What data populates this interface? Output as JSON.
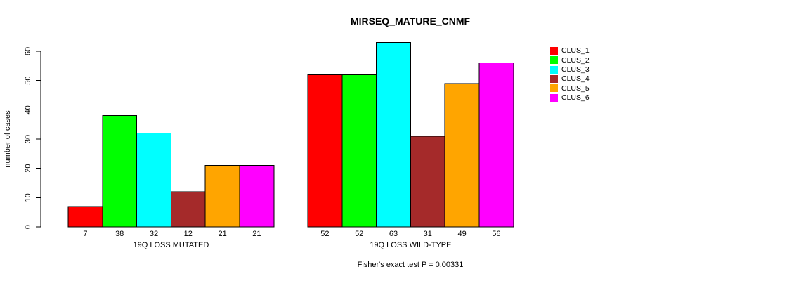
{
  "title": "MIRSEQ_MATURE_CNMF",
  "chart_data": {
    "type": "bar",
    "title": "MIRSEQ_MATURE_CNMF",
    "xlabel": "",
    "ylabel": "number of cases",
    "ylim": [
      0,
      60
    ],
    "yticks": [
      0,
      10,
      20,
      30,
      40,
      50,
      60
    ],
    "grid": false,
    "legend_position": "right",
    "categories": [
      "19Q LOSS MUTATED",
      "19Q LOSS WILD-TYPE"
    ],
    "series": [
      {
        "name": "CLUS_1",
        "color": "#FF0000",
        "values": [
          7,
          52
        ]
      },
      {
        "name": "CLUS_2",
        "color": "#00FF00",
        "values": [
          38,
          52
        ]
      },
      {
        "name": "CLUS_3",
        "color": "#00FFFF",
        "values": [
          32,
          63
        ]
      },
      {
        "name": "CLUS_4",
        "color": "#A52A2A",
        "values": [
          12,
          31
        ]
      },
      {
        "name": "CLUS_5",
        "color": "#FFA500",
        "values": [
          21,
          49
        ]
      },
      {
        "name": "CLUS_6",
        "color": "#FF00FF",
        "values": [
          21,
          56
        ]
      }
    ],
    "bar_value_labels": [
      [
        7,
        38,
        32,
        12,
        21,
        21
      ],
      [
        52,
        52,
        63,
        31,
        49,
        56
      ]
    ],
    "annotation": "Fisher's exact test P = 0.00331"
  }
}
